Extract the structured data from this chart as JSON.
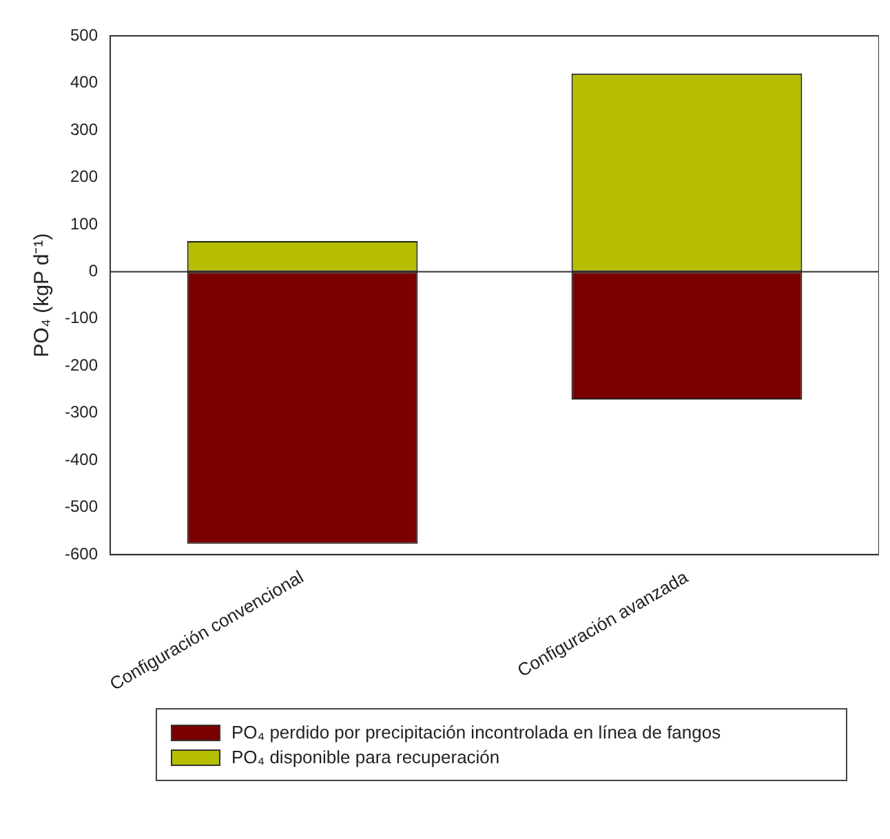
{
  "chart_data": {
    "type": "bar",
    "stacked": true,
    "ylabel": "PO₄ (kgP d⁻¹)",
    "categories": [
      "Configuración convencional",
      "Configuración avanzada"
    ],
    "series": [
      {
        "name": "PO₄ perdido por precipitación incontrolada en línea de fangos",
        "color": "#7b0000",
        "values": [
          -577,
          -271
        ]
      },
      {
        "name": "PO₄ disponible para recuperación",
        "color": "#b5be00",
        "values": [
          65,
          420
        ]
      }
    ],
    "ylim": [
      -600,
      500
    ],
    "yticks": [
      -600,
      -500,
      -400,
      -300,
      -200,
      -100,
      0,
      100,
      200,
      300,
      400,
      500
    ],
    "ref_lines": [
      {
        "axis": "y",
        "value": 0
      }
    ],
    "grid": false,
    "legend": "bottom"
  }
}
